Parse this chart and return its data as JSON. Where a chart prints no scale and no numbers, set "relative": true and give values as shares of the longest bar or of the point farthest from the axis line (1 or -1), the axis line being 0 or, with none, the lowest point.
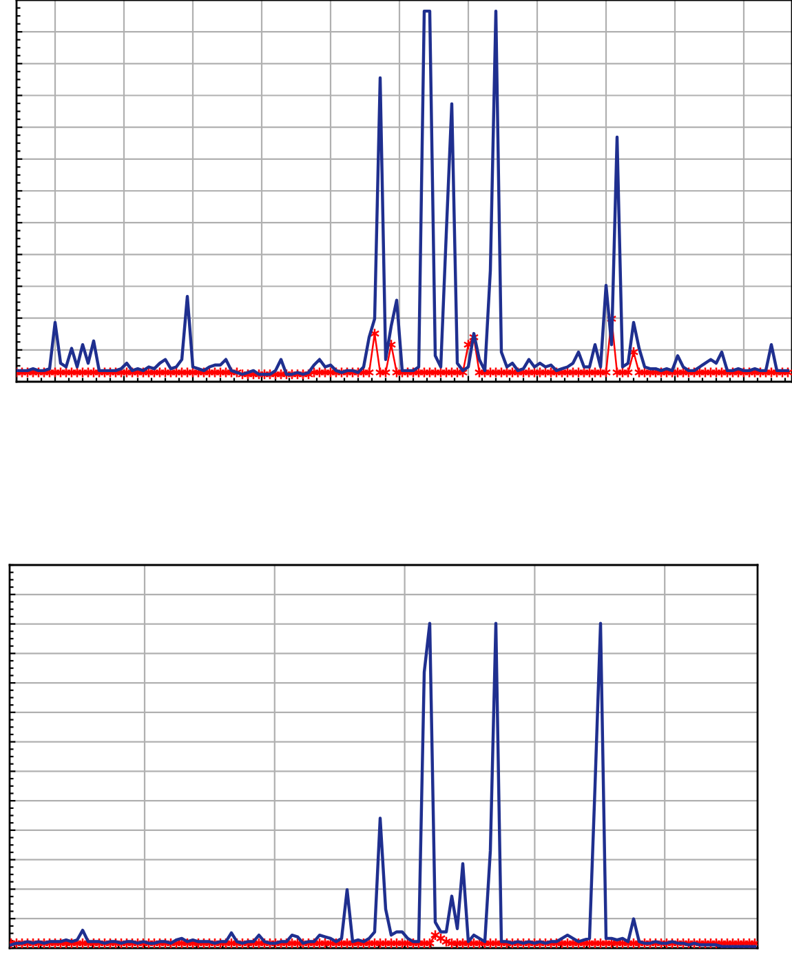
{
  "chart_data": [
    {
      "type": "line",
      "relative": true,
      "grid": true,
      "tick_labels": false,
      "categories": [
        null,
        null,
        null,
        null,
        null,
        null,
        null,
        null,
        null,
        null,
        null,
        null,
        null,
        null,
        null,
        null,
        null,
        null,
        null,
        null,
        null,
        null,
        null,
        null,
        null,
        null,
        null,
        null,
        null,
        null,
        null,
        null,
        null,
        null,
        null,
        null,
        null,
        null,
        null,
        null,
        null,
        null,
        null,
        null,
        null,
        null,
        null,
        null,
        null,
        null,
        null,
        null,
        null,
        null,
        null,
        null,
        null,
        null,
        null,
        null,
        null,
        null,
        null,
        null,
        null,
        null,
        null,
        null,
        null,
        null,
        null,
        null,
        null,
        null,
        null,
        null,
        null,
        null,
        null,
        null,
        null,
        null,
        null,
        null,
        null,
        null,
        null,
        null,
        null,
        null,
        null,
        null,
        null,
        null,
        null,
        null,
        null,
        null,
        null,
        null,
        null,
        null,
        null,
        null,
        null,
        null,
        null,
        null,
        null,
        null,
        null,
        null,
        null,
        null,
        null,
        null,
        null,
        null,
        null,
        null,
        null,
        null,
        null,
        null,
        null,
        null,
        null,
        null,
        null,
        null,
        null,
        null,
        null,
        null,
        null,
        null,
        null,
        null,
        null,
        null,
        null
      ],
      "series": [
        {
          "color": "#1f2f8f",
          "marker": "none",
          "values": [
            0.03,
            0.03,
            0.03,
            0.035,
            0.03,
            0.03,
            0.035,
            0.16,
            0.05,
            0.04,
            0.09,
            0.04,
            0.1,
            0.05,
            0.11,
            0.03,
            0.03,
            0.03,
            0.03,
            0.035,
            0.05,
            0.03,
            0.035,
            0.03,
            0.04,
            0.035,
            0.05,
            0.06,
            0.035,
            0.04,
            0.06,
            0.23,
            0.04,
            0.035,
            0.03,
            0.04,
            0.045,
            0.045,
            0.06,
            0.03,
            0.025,
            0.02,
            0.025,
            0.03,
            0.02,
            0.02,
            0.02,
            0.03,
            0.06,
            0.02,
            0.02,
            0.025,
            0.02,
            0.025,
            0.045,
            0.06,
            0.04,
            0.045,
            0.03,
            0.025,
            0.03,
            0.03,
            0.025,
            0.04,
            0.12,
            0.17,
            0.82,
            0.06,
            0.15,
            0.22,
            0.03,
            0.03,
            0.03,
            0.04,
            1.0,
            1.0,
            0.07,
            0.04,
            0.4,
            0.75,
            0.05,
            0.03,
            0.04,
            0.13,
            0.06,
            0.03,
            0.3,
            1.0,
            0.08,
            0.04,
            0.05,
            0.03,
            0.035,
            0.06,
            0.04,
            0.05,
            0.04,
            0.045,
            0.03,
            0.035,
            0.04,
            0.05,
            0.08,
            0.04,
            0.04,
            0.1,
            0.04,
            0.26,
            0.1,
            0.66,
            0.04,
            0.05,
            0.16,
            0.09,
            0.04,
            0.035,
            0.035,
            0.03,
            0.035,
            0.03,
            0.07,
            0.04,
            0.03,
            0.03,
            0.04,
            0.05,
            0.06,
            0.05,
            0.08,
            0.03,
            0.03,
            0.035,
            0.03,
            0.03,
            0.035,
            0.03,
            0.03,
            0.1,
            0.03,
            0.03,
            0.03
          ]
        },
        {
          "color": "#ff0000",
          "marker": "cross",
          "values": [
            0.025,
            0.025,
            0.025,
            0.025,
            0.025,
            0.025,
            0.025,
            0.025,
            0.025,
            0.025,
            0.025,
            0.025,
            0.025,
            0.025,
            0.025,
            0.025,
            0.025,
            0.025,
            0.025,
            0.025,
            0.025,
            0.025,
            0.025,
            0.025,
            0.025,
            0.025,
            0.025,
            0.025,
            0.025,
            0.025,
            0.025,
            0.025,
            0.025,
            0.025,
            0.025,
            0.025,
            0.025,
            0.025,
            0.025,
            0.025,
            0.025,
            0.02,
            0.02,
            0.02,
            0.02,
            0.02,
            0.02,
            0.02,
            0.02,
            0.02,
            0.02,
            0.02,
            0.02,
            0.02,
            0.025,
            0.025,
            0.025,
            0.025,
            0.025,
            0.025,
            0.025,
            0.025,
            0.025,
            0.025,
            0.025,
            0.13,
            0.025,
            0.025,
            0.1,
            0.025,
            0.025,
            0.025,
            0.025,
            0.025,
            0.025,
            0.025,
            0.025,
            0.025,
            0.025,
            0.025,
            0.025,
            0.025,
            0.1,
            0.12,
            0.025,
            0.025,
            0.025,
            0.025,
            0.025,
            0.025,
            0.025,
            0.025,
            0.025,
            0.025,
            0.025,
            0.025,
            0.025,
            0.025,
            0.025,
            0.025,
            0.025,
            0.025,
            0.025,
            0.025,
            0.025,
            0.025,
            0.025,
            0.025,
            0.17,
            0.025,
            0.025,
            0.025,
            0.08,
            0.025,
            0.025,
            0.025,
            0.025,
            0.025,
            0.025,
            0.025,
            0.025,
            0.025,
            0.025,
            0.025,
            0.025,
            0.025,
            0.025,
            0.025,
            0.025,
            0.025,
            0.025,
            0.025,
            0.025,
            0.025,
            0.025,
            0.025,
            0.025,
            0.025,
            0.025,
            0.025,
            0.025
          ]
        }
      ]
    },
    {
      "type": "line",
      "relative": true,
      "grid": true,
      "tick_labels": false,
      "categories": [
        null,
        null,
        null,
        null,
        null,
        null,
        null,
        null,
        null,
        null,
        null,
        null,
        null,
        null,
        null,
        null,
        null,
        null,
        null,
        null,
        null,
        null,
        null,
        null,
        null,
        null,
        null,
        null,
        null,
        null,
        null,
        null,
        null,
        null,
        null,
        null,
        null,
        null,
        null,
        null,
        null,
        null,
        null,
        null,
        null,
        null,
        null,
        null,
        null,
        null,
        null,
        null,
        null,
        null,
        null,
        null,
        null,
        null,
        null,
        null,
        null,
        null,
        null,
        null,
        null,
        null,
        null,
        null,
        null,
        null,
        null,
        null,
        null,
        null,
        null,
        null,
        null,
        null,
        null,
        null,
        null,
        null,
        null,
        null,
        null,
        null,
        null,
        null,
        null,
        null,
        null,
        null,
        null,
        null,
        null,
        null,
        null,
        null,
        null,
        null,
        null,
        null,
        null,
        null,
        null,
        null,
        null,
        null,
        null,
        null,
        null,
        null,
        null,
        null,
        null,
        null,
        null,
        null,
        null,
        null,
        null,
        null,
        null,
        null,
        null,
        null,
        null,
        null,
        null,
        null,
        null,
        null,
        null,
        null,
        null,
        null
      ],
      "series": [
        {
          "color": "#1f2f8f",
          "marker": "none",
          "values": [
            0.01,
            0.015,
            0.015,
            0.02,
            0.015,
            0.02,
            0.015,
            0.02,
            0.02,
            0.02,
            0.025,
            0.02,
            0.025,
            0.055,
            0.02,
            0.02,
            0.02,
            0.015,
            0.02,
            0.02,
            0.015,
            0.02,
            0.02,
            0.015,
            0.02,
            0.015,
            0.015,
            0.02,
            0.02,
            0.015,
            0.025,
            0.03,
            0.02,
            0.025,
            0.02,
            0.02,
            0.02,
            0.015,
            0.02,
            0.02,
            0.047,
            0.02,
            0.015,
            0.02,
            0.02,
            0.04,
            0.02,
            0.015,
            0.015,
            0.02,
            0.02,
            0.04,
            0.035,
            0.015,
            0.02,
            0.02,
            0.04,
            0.035,
            0.03,
            0.02,
            0.03,
            0.18,
            0.02,
            0.025,
            0.02,
            0.03,
            0.05,
            0.4,
            0.12,
            0.04,
            0.05,
            0.05,
            0.03,
            0.02,
            0.02,
            0.85,
            1.0,
            0.08,
            0.05,
            0.05,
            0.16,
            0.06,
            0.26,
            0.02,
            0.04,
            0.03,
            0.02,
            0.3,
            1.0,
            0.02,
            0.02,
            0.015,
            0.02,
            0.015,
            0.02,
            0.015,
            0.02,
            0.015,
            0.02,
            0.02,
            0.03,
            0.04,
            0.03,
            0.02,
            0.025,
            0.03,
            0.5,
            1.0,
            0.03,
            0.03,
            0.025,
            0.03,
            0.02,
            0.09,
            0.02,
            0.015,
            0.015,
            0.02,
            0.015,
            0.015,
            0.02,
            0.015,
            0.015,
            0.01,
            0.015,
            0.01,
            0.01,
            0.01,
            0.01,
            0.005,
            0.005,
            0.005,
            0.005,
            0.005,
            0.005,
            0.005
          ]
        },
        {
          "color": "#ff0000",
          "marker": "cross",
          "values": [
            0.015,
            0.015,
            0.015,
            0.015,
            0.015,
            0.015,
            0.015,
            0.015,
            0.015,
            0.015,
            0.015,
            0.015,
            0.015,
            0.015,
            0.015,
            0.015,
            0.015,
            0.015,
            0.015,
            0.015,
            0.015,
            0.015,
            0.015,
            0.015,
            0.015,
            0.015,
            0.015,
            0.015,
            0.015,
            0.015,
            0.015,
            0.015,
            0.015,
            0.015,
            0.015,
            0.015,
            0.015,
            0.015,
            0.015,
            0.015,
            0.015,
            0.015,
            0.015,
            0.015,
            0.015,
            0.015,
            0.015,
            0.015,
            0.015,
            0.015,
            0.015,
            0.015,
            0.015,
            0.015,
            0.015,
            0.015,
            0.015,
            0.015,
            0.015,
            0.015,
            0.015,
            0.015,
            0.015,
            0.015,
            0.015,
            0.015,
            0.015,
            0.015,
            0.015,
            0.015,
            0.015,
            0.015,
            0.015,
            0.015,
            0.015,
            0.015,
            0.015,
            0.04,
            0.03,
            0.02,
            0.015,
            0.015,
            0.015,
            0.015,
            0.015,
            0.015,
            0.015,
            0.015,
            0.015,
            0.015,
            0.015,
            0.015,
            0.015,
            0.015,
            0.015,
            0.015,
            0.015,
            0.015,
            0.015,
            0.015,
            0.015,
            0.015,
            0.015,
            0.015,
            0.015,
            0.015,
            0.015,
            0.015,
            0.015,
            0.015,
            0.015,
            0.015,
            0.015,
            0.015,
            0.015,
            0.015,
            0.015,
            0.015,
            0.015,
            0.015,
            0.015,
            0.015,
            0.015,
            0.015,
            0.015,
            0.015,
            0.015,
            0.015,
            0.015,
            0.015,
            0.015,
            0.015,
            0.015,
            0.015,
            0.015,
            0.015
          ]
        }
      ]
    }
  ]
}
